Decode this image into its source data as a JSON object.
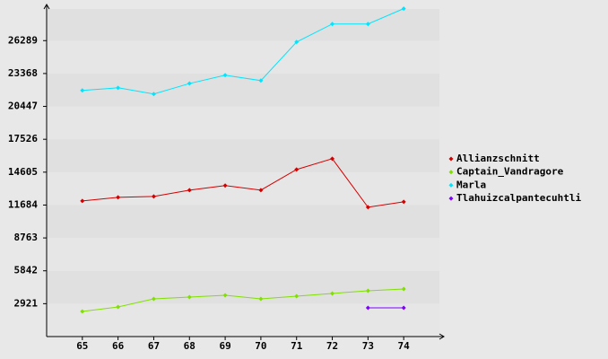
{
  "chart_data": {
    "type": "line",
    "x": [
      65,
      66,
      67,
      68,
      69,
      70,
      71,
      72,
      73,
      74
    ],
    "xlim": [
      64,
      75
    ],
    "xticks": [
      65,
      66,
      67,
      68,
      69,
      70,
      71,
      72,
      73,
      74
    ],
    "ylim": [
      0,
      29500
    ],
    "yticks": [
      2921,
      5842,
      8763,
      11684,
      14605,
      17526,
      20447,
      23368,
      26289
    ],
    "grid": true,
    "legend": "right",
    "series": [
      {
        "name": "Allianzschnitt",
        "color": "#d40000",
        "values": [
          12050,
          12370,
          12450,
          13010,
          13410,
          13010,
          14840,
          15800,
          11490,
          11970
        ]
      },
      {
        "name": "Captain_Vandragore",
        "color": "#80e000",
        "values": [
          2230,
          2630,
          3350,
          3510,
          3670,
          3350,
          3590,
          3830,
          4070,
          4230
        ]
      },
      {
        "name": "Marla",
        "color": "#00e5ff",
        "values": [
          21870,
          22100,
          21550,
          22480,
          23220,
          22740,
          26170,
          27770,
          27770,
          29130
        ]
      },
      {
        "name": "Tlahuizcalpantecuhtli",
        "color": "#7f00ff",
        "values": [
          null,
          null,
          null,
          null,
          null,
          null,
          null,
          null,
          2550,
          2550
        ]
      }
    ]
  }
}
